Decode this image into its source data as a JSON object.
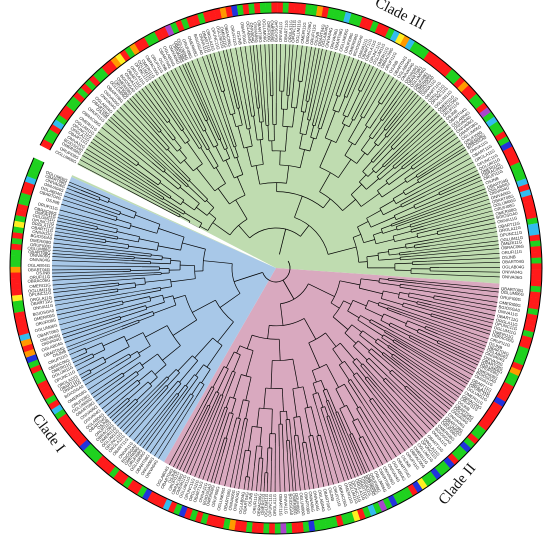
{
  "clades": [
    {
      "id": "I",
      "label": "Clade I",
      "color": "#a8c8e8"
    },
    {
      "id": "II",
      "label": "Clade II",
      "color": "#d9a9bf"
    },
    {
      "id": "III",
      "label": "Clade III",
      "color": "#bfdcb0"
    }
  ],
  "ring_palette": [
    "#ff1a1a",
    "#1fd11f",
    "#33bbee",
    "#2233dd",
    "#ff9900",
    "#ffee22",
    "#aa44cc"
  ],
  "leaf_label_samples": [
    "ONIVA06G",
    "OBART08G",
    "OGLUM06G",
    "ORUFI08G",
    "OMERI08G",
    "BGIOSGA0",
    "ONIVA11G",
    "OBART11G",
    "ORGLA11G",
    "OPUNC11G",
    "OGLUM11G",
    "OMERI11G",
    "OBRAC06G",
    "ORUFI11G",
    "OSJNB",
    "OBART04G",
    "OGLAB04G",
    "ONIVA04G"
  ]
}
